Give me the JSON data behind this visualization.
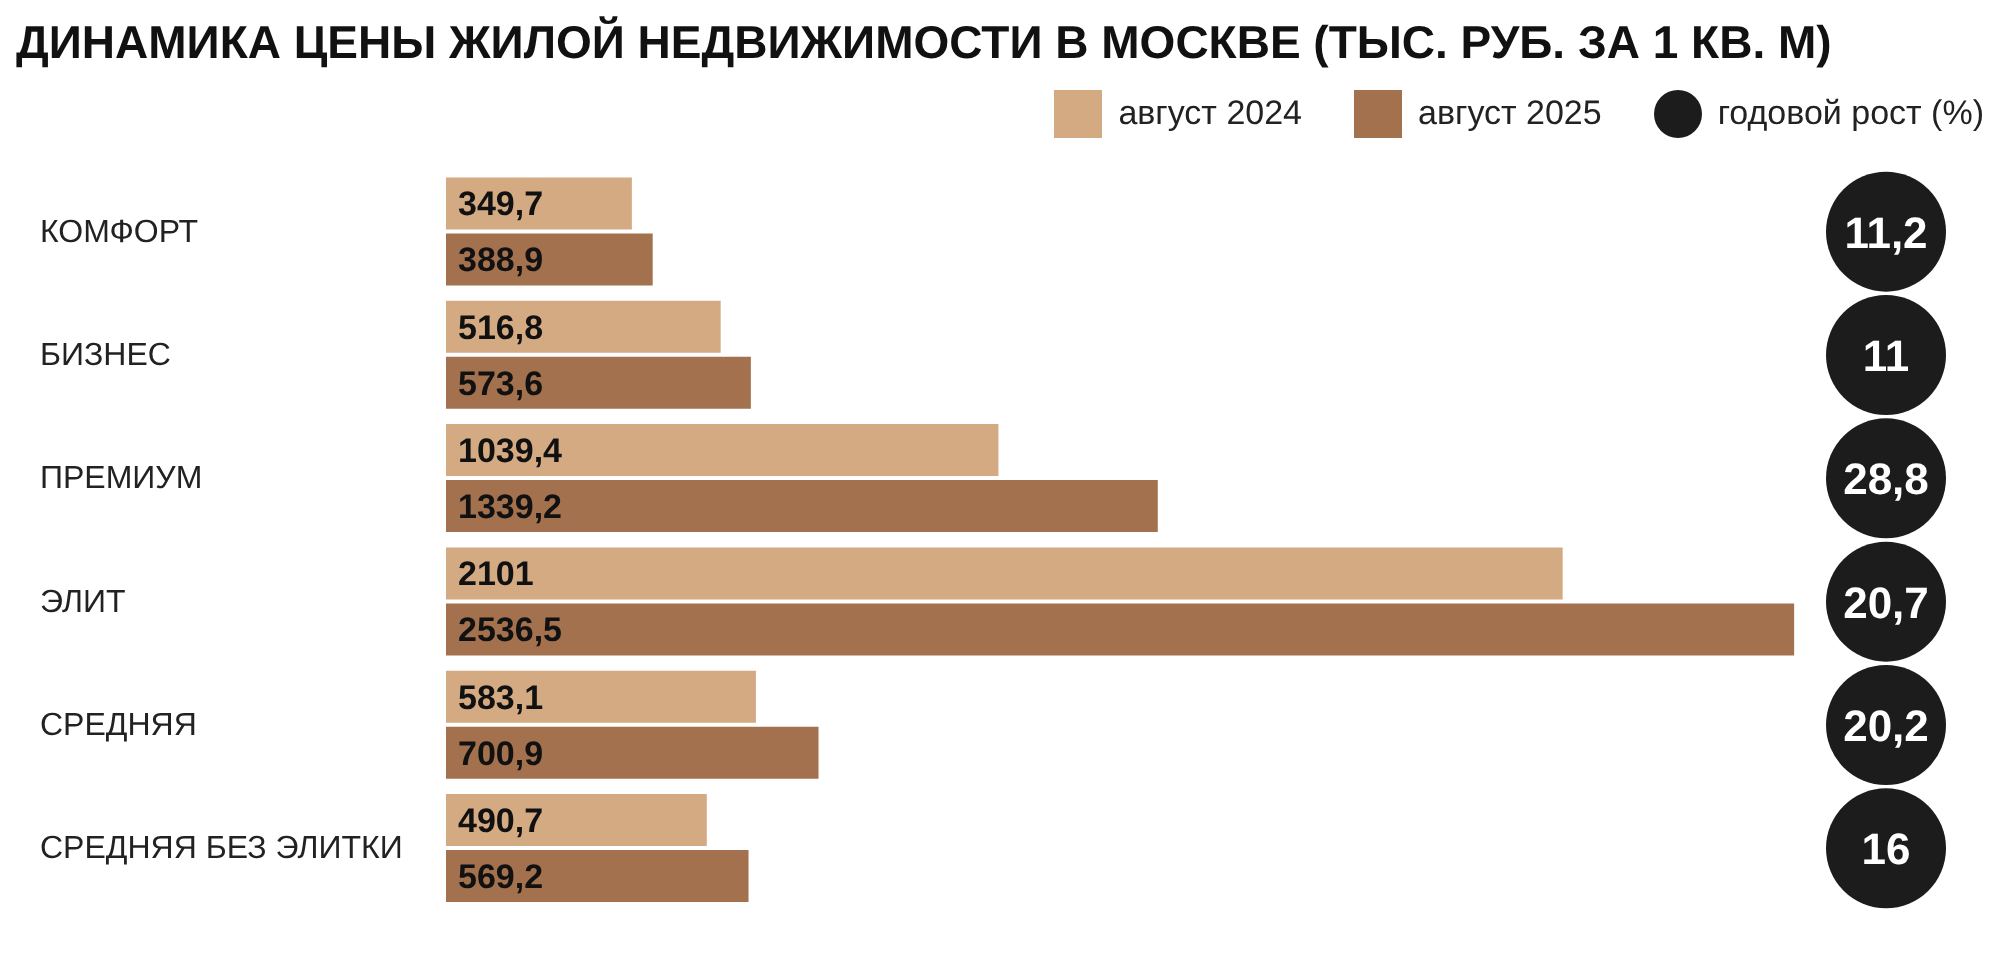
{
  "chart_data": [
    {
      "type": "bar",
      "orientation": "horizontal",
      "title": "ДИНАМИКА ЦЕНЫ ЖИЛОЙ НЕДВИЖИМОСТИ В МОСКВЕ (ТЫС. РУБ. ЗА 1 КВ. М)",
      "categories": [
        "КОМФОРТ",
        "БИЗНЕС",
        "ПРЕМИУМ",
        "ЭЛИТ",
        "СРЕДНЯЯ",
        "СРЕДНЯЯ БЕЗ ЭЛИТКИ"
      ],
      "series": [
        {
          "name": "август 2024",
          "color": "#d4aa83",
          "values": [
            349.7,
            516.8,
            1039.4,
            2101,
            583.1,
            490.7
          ],
          "value_labels": [
            "349,7",
            "516,8",
            "1039,4",
            "2101",
            "583,1",
            "490,7"
          ]
        },
        {
          "name": "август 2025",
          "color": "#a3714e",
          "values": [
            388.9,
            573.6,
            1339.2,
            2536.5,
            700.9,
            569.2
          ],
          "value_labels": [
            "388,9",
            "573,6",
            "1339,2",
            "2536,5",
            "700,9",
            "569,2"
          ]
        }
      ],
      "xlim": [
        0,
        2540
      ],
      "tick_labels": "y",
      "legend": "top right"
    },
    {
      "type": "other",
      "series": [
        {
          "name": "годовой рост (%)",
          "color": "#1c1c1c",
          "values": [
            11.2,
            11,
            28.8,
            20.7,
            20.2,
            16
          ],
          "value_labels": [
            "11,2",
            "11",
            "28,8",
            "20,7",
            "20,2",
            "16"
          ]
        }
      ]
    }
  ]
}
